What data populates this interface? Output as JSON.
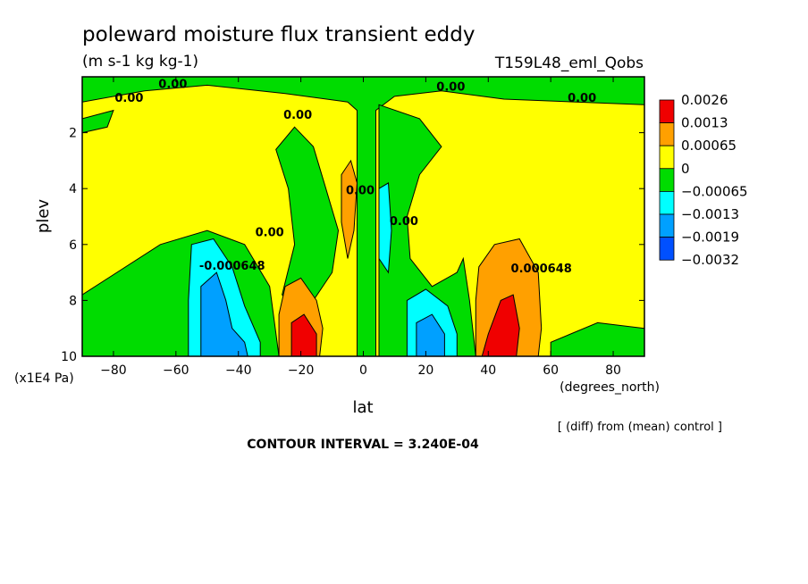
{
  "chart_data": {
    "type": "heatmap",
    "title": "poleward moisture flux transient eddy",
    "units": "(m s-1 kg kg-1)",
    "run_label": "T159L48_eml_Qobs",
    "xlabel": "lat",
    "xunits": "(degrees_north)",
    "ylabel": "plev",
    "yunits": "(x1E4 Pa)",
    "xlim": [
      -90,
      90
    ],
    "ylim": [
      0,
      10
    ],
    "y_inverted": true,
    "x_ticks": [
      -80,
      -60,
      -40,
      -20,
      0,
      20,
      40,
      60,
      80
    ],
    "x_tick_labels": [
      "−80",
      "−60",
      "−40",
      "−20",
      "0",
      "20",
      "40",
      "60",
      "80"
    ],
    "y_ticks": [
      2,
      4,
      6,
      8,
      10
    ],
    "y_tick_labels": [
      "2",
      "4",
      "6",
      "8",
      "10"
    ],
    "note": "[ (diff) from (mean) control ]",
    "contour_interval": "CONTOUR INTERVAL = 3.240E-04",
    "legend": {
      "placement": "right",
      "levels": [
        {
          "label": "0.0026",
          "color": "#f00000"
        },
        {
          "label": "0.0013",
          "color": "#ffa000"
        },
        {
          "label": "0.00065",
          "color": "#ffff00"
        },
        {
          "label": "0",
          "color": "#00dc00"
        },
        {
          "label": "−0.00065",
          "color": "#00ffff"
        },
        {
          "label": "−0.0013",
          "color": "#00a0ff"
        },
        {
          "label": "−0.0019",
          "color": "#0050ff"
        },
        {
          "label": "−0.0032",
          "color": ""
        }
      ]
    },
    "contour_labels": [
      {
        "text": "0.00",
        "lon": -75,
        "lev": 0.9
      },
      {
        "text": "0.00",
        "lon": -61,
        "lev": 0.4
      },
      {
        "text": "0.00",
        "lon": -21,
        "lev": 1.5
      },
      {
        "text": "0.00",
        "lon": 28,
        "lev": 0.5
      },
      {
        "text": "0.00",
        "lon": 70,
        "lev": 0.9
      },
      {
        "text": "0.00",
        "lon": -1,
        "lev": 4.2
      },
      {
        "text": "0.00",
        "lon": 13,
        "lev": 5.3
      },
      {
        "text": "0.00",
        "lon": -30,
        "lev": 5.7
      },
      {
        "text": "-0.000648",
        "lon": -42,
        "lev": 6.9
      },
      {
        "text": "0.000648",
        "lon": 57,
        "lev": 7.0
      }
    ],
    "field_regions": {
      "yellow_base": "#ffff00",
      "green": [
        [
          [
            -90,
            0
          ],
          [
            90,
            0
          ],
          [
            90,
            1.0
          ],
          [
            45,
            0.8
          ],
          [
            25,
            0.5
          ],
          [
            10,
            0.7
          ],
          [
            4,
            1.2
          ],
          [
            4,
            10
          ],
          [
            -2,
            10
          ],
          [
            -2,
            1.2
          ],
          [
            -5,
            0.9
          ],
          [
            -25,
            0.6
          ],
          [
            -50,
            0.3
          ],
          [
            -70,
            0.5
          ],
          [
            -90,
            0.9
          ]
        ],
        [
          [
            -90,
            7.8
          ],
          [
            -65,
            6.0
          ],
          [
            -50,
            5.5
          ],
          [
            -38,
            6.0
          ],
          [
            -30,
            7.5
          ],
          [
            -27,
            10
          ],
          [
            -90,
            10
          ]
        ],
        [
          [
            -90,
            1.5
          ],
          [
            -80,
            1.2
          ],
          [
            -82,
            1.8
          ],
          [
            -90,
            2.0
          ]
        ],
        [
          [
            5,
            1.0
          ],
          [
            18,
            1.5
          ],
          [
            25,
            2.5
          ],
          [
            18,
            3.5
          ],
          [
            14,
            5.0
          ],
          [
            15,
            6.5
          ],
          [
            22,
            7.5
          ],
          [
            30,
            7.0
          ],
          [
            32,
            6.5
          ],
          [
            34,
            8.0
          ],
          [
            36,
            10
          ],
          [
            5,
            10
          ]
        ],
        [
          [
            -22,
            1.8
          ],
          [
            -16,
            2.5
          ],
          [
            -12,
            4.0
          ],
          [
            -8,
            5.5
          ],
          [
            -10,
            7.0
          ],
          [
            -16,
            8.0
          ],
          [
            -22,
            8.2
          ],
          [
            -26,
            7.8
          ],
          [
            -22,
            6.0
          ],
          [
            -24,
            4.0
          ],
          [
            -28,
            2.6
          ]
        ],
        [
          [
            60,
            9.5
          ],
          [
            75,
            8.8
          ],
          [
            90,
            9.0
          ],
          [
            90,
            10
          ],
          [
            60,
            10
          ]
        ]
      ],
      "orange": [
        [
          [
            -25,
            7.5
          ],
          [
            -20,
            7.2
          ],
          [
            -15,
            8.0
          ],
          [
            -13,
            9.0
          ],
          [
            -14,
            10
          ],
          [
            -27,
            10
          ],
          [
            -27,
            8.5
          ]
        ],
        [
          [
            -7,
            3.5
          ],
          [
            -4,
            3.0
          ],
          [
            -2,
            3.8
          ],
          [
            -3,
            5.5
          ],
          [
            -5,
            6.5
          ],
          [
            -7,
            5.2
          ]
        ],
        [
          [
            37,
            6.8
          ],
          [
            42,
            6.0
          ],
          [
            50,
            5.8
          ],
          [
            56,
            7.0
          ],
          [
            57,
            9.0
          ],
          [
            56,
            10
          ],
          [
            36,
            10
          ],
          [
            36,
            8.0
          ]
        ]
      ],
      "red": [
        [
          [
            -23,
            8.8
          ],
          [
            -19,
            8.5
          ],
          [
            -15,
            9.2
          ],
          [
            -15,
            10
          ],
          [
            -23,
            10
          ]
        ],
        [
          [
            40,
            9.2
          ],
          [
            44,
            8.0
          ],
          [
            48,
            7.8
          ],
          [
            50,
            9.0
          ],
          [
            49,
            10
          ],
          [
            38,
            10
          ]
        ]
      ],
      "cyan": [
        [
          [
            -55,
            6.0
          ],
          [
            -48,
            5.8
          ],
          [
            -42,
            6.8
          ],
          [
            -38,
            8.2
          ],
          [
            -33,
            9.5
          ],
          [
            -33,
            10
          ],
          [
            -56,
            10
          ],
          [
            -56,
            8.0
          ]
        ],
        [
          [
            5,
            4.0
          ],
          [
            8,
            3.8
          ],
          [
            9,
            5.5
          ],
          [
            8,
            7.0
          ],
          [
            5,
            6.5
          ]
        ],
        [
          [
            14,
            8.0
          ],
          [
            20,
            7.6
          ],
          [
            27,
            8.2
          ],
          [
            30,
            9.2
          ],
          [
            30,
            10
          ],
          [
            14,
            10
          ]
        ]
      ],
      "blue": [
        [
          [
            -52,
            7.5
          ],
          [
            -47,
            7.0
          ],
          [
            -44,
            8.0
          ],
          [
            -42,
            9.0
          ],
          [
            -38,
            9.5
          ],
          [
            -37,
            10
          ],
          [
            -52,
            10
          ]
        ],
        [
          [
            17,
            8.8
          ],
          [
            22,
            8.5
          ],
          [
            26,
            9.2
          ],
          [
            26,
            10
          ],
          [
            17,
            10
          ]
        ]
      ]
    }
  }
}
